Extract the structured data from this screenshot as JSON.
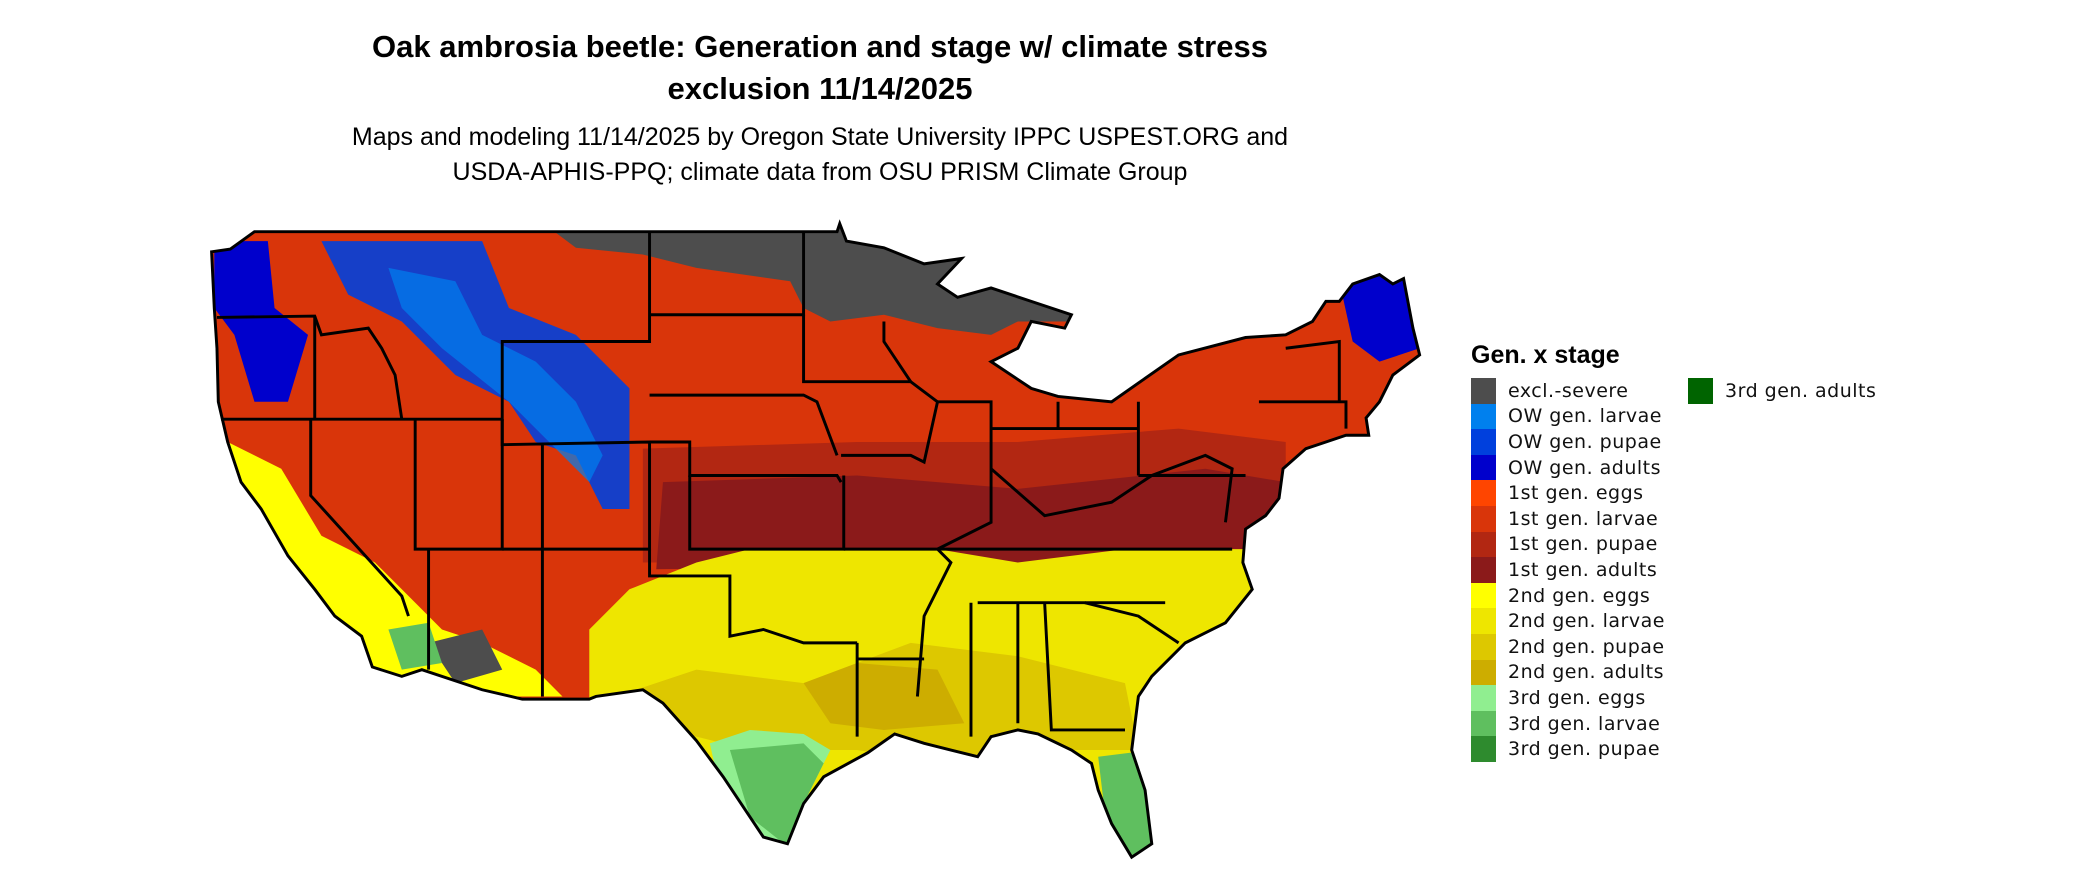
{
  "title": "Oak ambrosia beetle: Generation and stage w/ climate stress exclusion 11/14/2025",
  "title_lines": [
    "Oak ambrosia beetle: Generation and stage w/ climate stress",
    "exclusion 11/14/2025"
  ],
  "subtitle_lines": [
    "Maps and modeling 11/14/2025 by Oregon State University IPPC USPEST.ORG and",
    "USDA-APHIS-PPQ; climate data from OSU PRISM Climate Group"
  ],
  "legend": {
    "title": "Gen. x stage",
    "items": [
      {
        "label": "excl.-severe",
        "color": "#4d4d4d"
      },
      {
        "label": "OW gen. larvae",
        "color": "#0080ee"
      },
      {
        "label": "OW gen. pupae",
        "color": "#0040dd"
      },
      {
        "label": "OW gen. adults",
        "color": "#0000cc"
      },
      {
        "label": "1st gen. eggs",
        "color": "#ff4500"
      },
      {
        "label": "1st gen. larvae",
        "color": "#d9350a"
      },
      {
        "label": "1st gen. pupae",
        "color": "#b22712"
      },
      {
        "label": "1st gen. adults",
        "color": "#8b1a1a"
      },
      {
        "label": "2nd gen. eggs",
        "color": "#ffff00"
      },
      {
        "label": "2nd gen. larvae",
        "color": "#eee600"
      },
      {
        "label": "2nd gen. pupae",
        "color": "#ddc800"
      },
      {
        "label": "2nd gen. adults",
        "color": "#cdad00"
      },
      {
        "label": "3rd gen. eggs",
        "color": "#90ee90"
      },
      {
        "label": "3rd gen. larvae",
        "color": "#5fbf5f"
      },
      {
        "label": "3rd gen. pupae",
        "color": "#2e8b2e"
      },
      {
        "label": "3rd gen. adults",
        "color": "#006400"
      }
    ]
  }
}
